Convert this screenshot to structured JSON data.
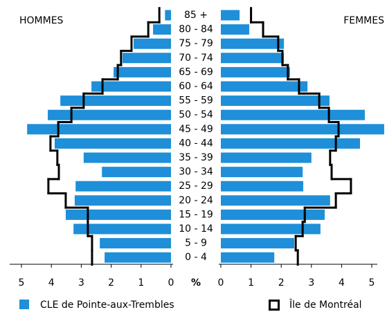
{
  "chart_data": {
    "type": "pyramid",
    "left_label": "HOMMES",
    "right_label": "FEMMES",
    "axis_label": "%",
    "categories": [
      "85 +",
      "80 - 84",
      "75 - 79",
      "70 - 74",
      "65 - 69",
      "60 - 64",
      "55 - 59",
      "50 - 54",
      "45 - 49",
      "40 - 44",
      "35 - 39",
      "30 - 34",
      "25 - 29",
      "20 - 24",
      "15 - 19",
      "10 - 14",
      "5 - 9",
      "0 - 4"
    ],
    "series": [
      {
        "name": "CLE de Pointe-aux-Trembles",
        "color": "#1e8fd8",
        "style": "bar",
        "left": [
          0.2,
          0.6,
          1.25,
          1.62,
          1.92,
          2.66,
          3.7,
          4.12,
          4.81,
          3.89,
          2.92,
          2.31,
          3.19,
          3.22,
          3.52,
          3.26,
          2.38,
          2.22
        ],
        "right": [
          0.62,
          0.94,
          2.09,
          2.09,
          2.29,
          2.87,
          3.6,
          4.77,
          5.41,
          4.61,
          3.0,
          2.71,
          2.73,
          3.62,
          3.44,
          3.3,
          2.43,
          1.77
        ]
      },
      {
        "name": "Île de Montréal",
        "color": "#000000",
        "style": "step",
        "left": [
          0.39,
          0.76,
          1.32,
          1.67,
          1.78,
          2.29,
          2.92,
          3.33,
          3.77,
          4.03,
          3.8,
          3.75,
          4.1,
          3.52,
          2.78,
          2.78,
          2.64,
          2.64
        ],
        "right": [
          1.0,
          1.4,
          1.9,
          2.04,
          2.22,
          2.59,
          3.26,
          3.58,
          3.9,
          3.81,
          3.62,
          3.67,
          4.31,
          3.81,
          2.78,
          2.71,
          2.48,
          2.55
        ]
      }
    ],
    "xlim": [
      0,
      5
    ],
    "xticks": [
      0,
      1,
      2,
      3,
      4,
      5
    ]
  }
}
